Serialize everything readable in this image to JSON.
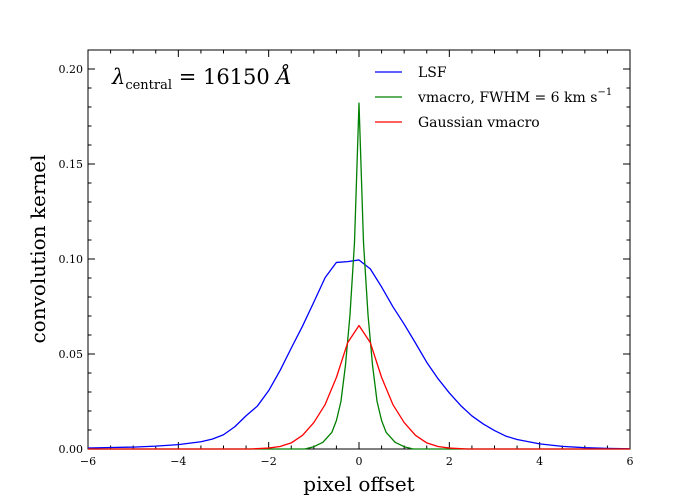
{
  "chart_data": {
    "type": "line",
    "title": "",
    "xlabel": "pixel offset",
    "ylabel": "convolution kernel",
    "xlim": [
      -6,
      6
    ],
    "ylim": [
      0,
      0.21
    ],
    "xticks": [
      -6,
      -4,
      -2,
      0,
      2,
      4,
      6
    ],
    "xtick_labels": [
      "−6",
      "−4",
      "−2",
      "0",
      "2",
      "4",
      "6"
    ],
    "yticks": [
      0.0,
      0.05,
      0.1,
      0.15,
      0.2
    ],
    "ytick_labels": [
      "0.00",
      "0.05",
      "0.10",
      "0.15",
      "0.20"
    ],
    "annotation": {
      "lambda": "λ",
      "subscript": "central",
      "equals_value": " = 16150 ",
      "unit": "Å"
    },
    "legend_position": "top-right",
    "series": [
      {
        "name": "LSF",
        "legend_parts": {
          "text": "LSF",
          "sup": ""
        },
        "color": "#0000ff",
        "x": [
          -6,
          -5.5,
          -5,
          -4.5,
          -4,
          -3.5,
          -3.25,
          -3,
          -2.75,
          -2.5,
          -2.25,
          -2,
          -1.75,
          -1.5,
          -1.25,
          -1,
          -0.75,
          -0.5,
          -0.25,
          0,
          0.25,
          0.5,
          0.75,
          1,
          1.25,
          1.5,
          1.75,
          2,
          2.25,
          2.5,
          2.75,
          3,
          3.25,
          3.5,
          4,
          4.5,
          5,
          5.5,
          6
        ],
        "y": [
          0.0005,
          0.0008,
          0.001,
          0.0015,
          0.0023,
          0.0038,
          0.0052,
          0.0075,
          0.0117,
          0.0175,
          0.0226,
          0.0307,
          0.0412,
          0.0531,
          0.0647,
          0.0773,
          0.0902,
          0.0982,
          0.0986,
          0.0995,
          0.0948,
          0.0853,
          0.0749,
          0.0657,
          0.0558,
          0.0456,
          0.037,
          0.0295,
          0.0229,
          0.0174,
          0.0132,
          0.0097,
          0.0068,
          0.005,
          0.0027,
          0.0014,
          0.0007,
          0.0003,
          0.0001
        ]
      },
      {
        "name": "vmacro, FWHM = 6 km s^-1",
        "legend_parts": {
          "text": "vmacro,  FWHM = 6 km s",
          "sup": "−1"
        },
        "color": "#008000",
        "x": [
          -6,
          -1.2,
          -1.0,
          -0.8,
          -0.6,
          -0.5,
          -0.4,
          -0.3,
          -0.2,
          -0.1,
          0,
          0.1,
          0.2,
          0.3,
          0.4,
          0.5,
          0.6,
          0.8,
          1.0,
          1.2,
          6
        ],
        "y": [
          0,
          0,
          0.0012,
          0.0035,
          0.0088,
          0.015,
          0.025,
          0.044,
          0.0705,
          0.1085,
          0.182,
          0.1085,
          0.0705,
          0.044,
          0.025,
          0.015,
          0.0088,
          0.0035,
          0.0012,
          0,
          0
        ]
      },
      {
        "name": "Gaussian vmacro",
        "legend_parts": {
          "text": "Gaussian vmacro",
          "sup": ""
        },
        "color": "#ff0000",
        "x": [
          -6,
          -2.4,
          -2,
          -1.75,
          -1.5,
          -1.25,
          -1,
          -0.75,
          -0.5,
          -0.25,
          0,
          0.25,
          0.5,
          0.75,
          1,
          1.25,
          1.5,
          1.75,
          2,
          2.4,
          6
        ],
        "y": [
          0,
          0,
          0.0005,
          0.0013,
          0.0032,
          0.0072,
          0.0139,
          0.0234,
          0.0377,
          0.056,
          0.065,
          0.056,
          0.0377,
          0.0234,
          0.0139,
          0.0072,
          0.0032,
          0.0013,
          0.0005,
          0,
          0
        ]
      }
    ]
  }
}
